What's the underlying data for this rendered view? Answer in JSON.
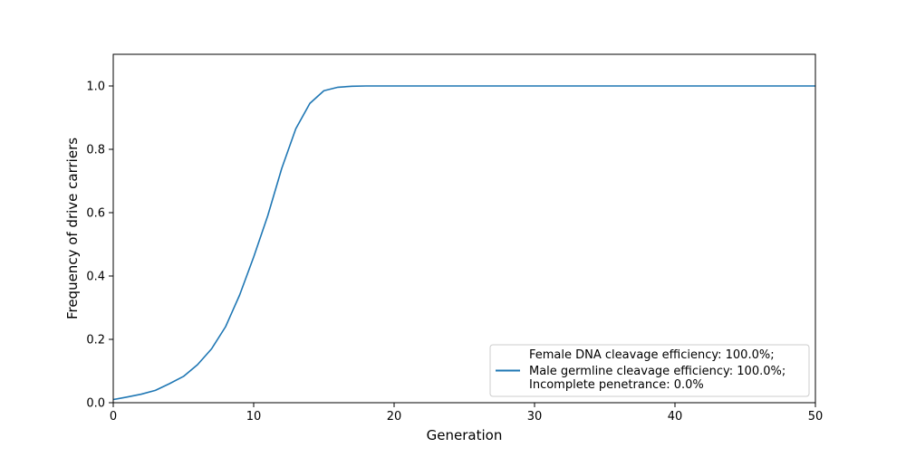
{
  "chart_data": {
    "type": "line",
    "title": "",
    "xlabel": "Generation",
    "ylabel": "Frequency of drive carriers",
    "xlim": [
      0,
      50
    ],
    "ylim": [
      0,
      1.1
    ],
    "xticks": [
      0,
      10,
      20,
      30,
      40,
      50
    ],
    "xtick_labels": [
      "0",
      "10",
      "20",
      "30",
      "40",
      "50"
    ],
    "yticks": [
      0,
      0.2,
      0.4,
      0.6,
      0.8,
      1.0
    ],
    "ytick_labels": [
      "0.0",
      "0.2",
      "0.4",
      "0.6",
      "0.8",
      "1.0"
    ],
    "grid": false,
    "legend_position": "lower-right",
    "series": [
      {
        "name_lines": [
          "Female DNA cleavage efficiency: 100.0%;",
          "Male germline cleavage efficiency: 100.0%;",
          "Incomplete penetrance: 0.0%"
        ],
        "color": "#1f77b4",
        "x": [
          0,
          1,
          2,
          3,
          4,
          5,
          6,
          7,
          8,
          9,
          10,
          11,
          12,
          13,
          14,
          15,
          16,
          17,
          18,
          19,
          20,
          21,
          22,
          23,
          24,
          25,
          26,
          27,
          28,
          29,
          30,
          31,
          32,
          33,
          34,
          35,
          36,
          37,
          38,
          39,
          40,
          41,
          42,
          43,
          44,
          45,
          46,
          47,
          48,
          49,
          50
        ],
        "y": [
          0.01,
          0.018,
          0.027,
          0.039,
          0.06,
          0.083,
          0.12,
          0.17,
          0.24,
          0.34,
          0.46,
          0.59,
          0.74,
          0.865,
          0.945,
          0.985,
          0.996,
          0.999,
          1.0,
          1.0,
          1.0,
          1.0,
          1.0,
          1.0,
          1.0,
          1.0,
          1.0,
          1.0,
          1.0,
          1.0,
          1.0,
          1.0,
          1.0,
          1.0,
          1.0,
          1.0,
          1.0,
          1.0,
          1.0,
          1.0,
          1.0,
          1.0,
          1.0,
          1.0,
          1.0,
          1.0,
          1.0,
          1.0,
          1.0,
          1.0,
          1.0
        ]
      }
    ]
  }
}
